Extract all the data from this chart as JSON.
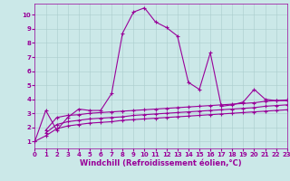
{
  "xlabel": "Windchill (Refroidissement éolien,°C)",
  "bg_color": "#cbe8e8",
  "line_color": "#990099",
  "xlim": [
    0,
    23
  ],
  "ylim": [
    0.5,
    10.8
  ],
  "yticks": [
    1,
    2,
    3,
    4,
    5,
    6,
    7,
    8,
    9,
    10
  ],
  "xticks": [
    0,
    1,
    2,
    3,
    4,
    5,
    6,
    7,
    8,
    9,
    10,
    11,
    12,
    13,
    14,
    15,
    16,
    17,
    18,
    19,
    20,
    21,
    22,
    23
  ],
  "series": [
    {
      "x": [
        0,
        1,
        2,
        3,
        4,
        5,
        6,
        7,
        8,
        9,
        10,
        11,
        12,
        13,
        14,
        15,
        16,
        17,
        18,
        19,
        20,
        21,
        22,
        23
      ],
      "y": [
        1.0,
        3.2,
        1.8,
        2.7,
        3.3,
        3.2,
        3.2,
        4.4,
        8.7,
        10.2,
        10.5,
        9.5,
        9.1,
        8.5,
        5.2,
        4.7,
        7.3,
        3.5,
        3.6,
        3.8,
        4.7,
        4.0,
        3.9,
        3.9
      ]
    },
    {
      "x": [
        1,
        2,
        3,
        4,
        5,
        6,
        7,
        8,
        9,
        10,
        11,
        12,
        13,
        14,
        15,
        16,
        17,
        18,
        19,
        20,
        21,
        22,
        23
      ],
      "y": [
        1.8,
        2.7,
        2.85,
        2.9,
        3.0,
        3.05,
        3.1,
        3.15,
        3.2,
        3.25,
        3.3,
        3.35,
        3.4,
        3.45,
        3.5,
        3.55,
        3.6,
        3.65,
        3.7,
        3.75,
        3.85,
        3.9,
        3.95
      ]
    },
    {
      "x": [
        1,
        2,
        3,
        4,
        5,
        6,
        7,
        8,
        9,
        10,
        11,
        12,
        13,
        14,
        15,
        16,
        17,
        18,
        19,
        20,
        21,
        22,
        23
      ],
      "y": [
        1.6,
        2.2,
        2.4,
        2.5,
        2.6,
        2.65,
        2.7,
        2.75,
        2.85,
        2.9,
        2.95,
        3.0,
        3.05,
        3.1,
        3.15,
        3.2,
        3.25,
        3.3,
        3.35,
        3.4,
        3.5,
        3.55,
        3.6
      ]
    },
    {
      "x": [
        0,
        1,
        2,
        3,
        4,
        5,
        6,
        7,
        8,
        9,
        10,
        11,
        12,
        13,
        14,
        15,
        16,
        17,
        18,
        19,
        20,
        21,
        22,
        23
      ],
      "y": [
        1.0,
        1.4,
        1.9,
        2.1,
        2.2,
        2.3,
        2.35,
        2.4,
        2.5,
        2.55,
        2.6,
        2.65,
        2.7,
        2.75,
        2.8,
        2.85,
        2.9,
        2.95,
        3.0,
        3.05,
        3.1,
        3.15,
        3.2,
        3.25
      ]
    }
  ],
  "marker": "+",
  "markersize": 3,
  "linewidth": 0.8,
  "tick_fontsize": 5,
  "xlabel_fontsize": 6,
  "grid_color": "#aacccc",
  "grid_linewidth": 0.4
}
